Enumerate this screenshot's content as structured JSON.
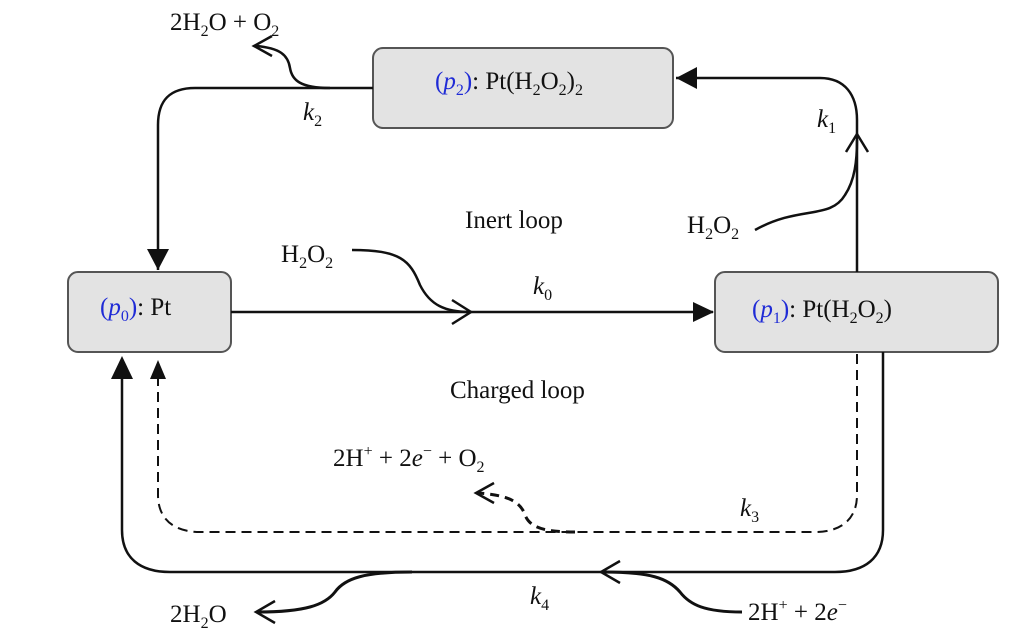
{
  "nodes": {
    "p0": {
      "id": "p0",
      "species": "Pt"
    },
    "p1": {
      "id": "p1",
      "species_open": "Pt(H",
      "species_tail": ")"
    },
    "p2": {
      "id": "p2",
      "species_open": "Pt(H",
      "species_mid": ")"
    }
  },
  "chem": {
    "sub_2": "2",
    "sub_0": "0",
    "sub_1": "1",
    "sub_3": "3",
    "sub_4": "4",
    "H": "H",
    "O": "O",
    "two_H": "2H",
    "plus_O": " + O",
    "H2O_mol_O": "O",
    "charge_plus": "+",
    "charge_minus": "−",
    "plus_2e": " + 2",
    "e": "e",
    "k": "k"
  },
  "loops": {
    "inert": "Inert loop",
    "charged": "Charged loop"
  },
  "colors": {
    "node_fill": "#e3e3e3",
    "node_stroke": "#555555",
    "line": "#111111",
    "label_blue": "#1f2bd6"
  }
}
